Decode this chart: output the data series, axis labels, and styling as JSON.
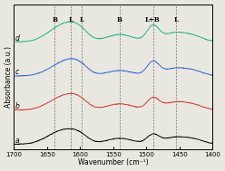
{
  "xlabel": "Wavenumber (cm⁻¹)",
  "ylabel": "Absorbance (a.u.)",
  "xlim": [
    1700,
    1400
  ],
  "offsets": [
    0,
    0.22,
    0.44,
    0.66
  ],
  "colors": [
    "black",
    "#d63030",
    "#3060d0",
    "#20b080"
  ],
  "labels": [
    "a",
    "b",
    "c",
    "d"
  ],
  "dashed_lines": [
    1638,
    1614,
    1597,
    1540,
    1490,
    1455
  ],
  "label_map": [
    "B",
    "L",
    "L",
    "B",
    "L+B",
    "L"
  ],
  "xticks": [
    1700,
    1650,
    1600,
    1550,
    1500,
    1450,
    1400
  ],
  "background_color": "#e8e8e0",
  "spectra": [
    {
      "peaks": [
        1638,
        1614,
        1597,
        1540,
        1490,
        1455,
        1425
      ],
      "widths": [
        18,
        16,
        12,
        20,
        9,
        20,
        14
      ],
      "heights": [
        0.055,
        0.065,
        0.03,
        0.038,
        0.055,
        0.045,
        0.02
      ]
    },
    {
      "peaks": [
        1638,
        1614,
        1597,
        1540,
        1490,
        1455,
        1425
      ],
      "widths": [
        18,
        16,
        12,
        20,
        9,
        20,
        14
      ],
      "heights": [
        0.048,
        0.075,
        0.032,
        0.04,
        0.07,
        0.052,
        0.02
      ]
    },
    {
      "peaks": [
        1638,
        1614,
        1597,
        1540,
        1490,
        1455,
        1425
      ],
      "widths": [
        18,
        16,
        12,
        20,
        9,
        20,
        14
      ],
      "heights": [
        0.045,
        0.08,
        0.035,
        0.035,
        0.085,
        0.05,
        0.02
      ]
    },
    {
      "peaks": [
        1638,
        1614,
        1597,
        1540,
        1490,
        1455,
        1425
      ],
      "widths": [
        18,
        16,
        12,
        20,
        9,
        20,
        14
      ],
      "heights": [
        0.062,
        0.09,
        0.038,
        0.048,
        0.095,
        0.06,
        0.022
      ]
    }
  ]
}
